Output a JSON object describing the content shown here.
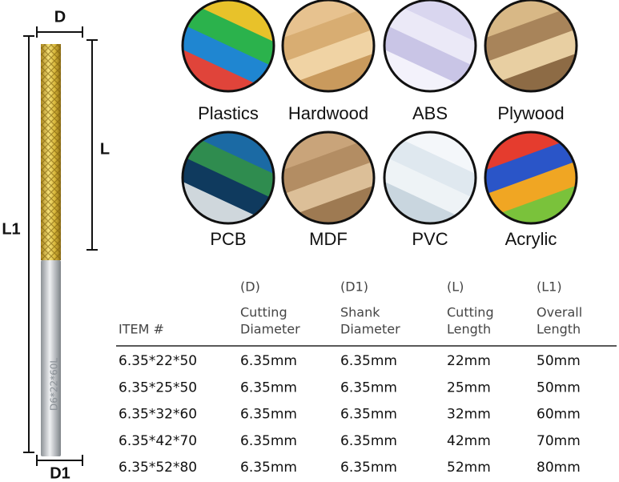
{
  "dimensions": {
    "d": "D",
    "l": "L",
    "l1": "L1",
    "d1": "D1",
    "engraving": "D6*22*60L"
  },
  "materials": [
    "Plastics",
    "Hardwood",
    "ABS",
    "Plywood",
    "PCB",
    "MDF",
    "PVC",
    "Acrylic"
  ],
  "table": {
    "headers": [
      {
        "lines": [
          "ITEM #"
        ]
      },
      {
        "code": "(D)",
        "lines": [
          "Cutting",
          "Diameter"
        ]
      },
      {
        "code": "(D1)",
        "lines": [
          "Shank",
          "Diameter"
        ]
      },
      {
        "code": "(L)",
        "lines": [
          "Cutting",
          "Length"
        ]
      },
      {
        "code": "(L1)",
        "lines": [
          "Overall",
          "Length"
        ]
      }
    ],
    "rows": [
      [
        "6.35*22*50",
        "6.35mm",
        "6.35mm",
        "22mm",
        "50mm"
      ],
      [
        "6.35*25*50",
        "6.35mm",
        "6.35mm",
        "25mm",
        "50mm"
      ],
      [
        "6.35*32*60",
        "6.35mm",
        "6.35mm",
        "32mm",
        "60mm"
      ],
      [
        "6.35*42*70",
        "6.35mm",
        "6.35mm",
        "42mm",
        "70mm"
      ],
      [
        "6.35*52*80",
        "6.35mm",
        "6.35mm",
        "52mm",
        "80mm"
      ]
    ]
  }
}
